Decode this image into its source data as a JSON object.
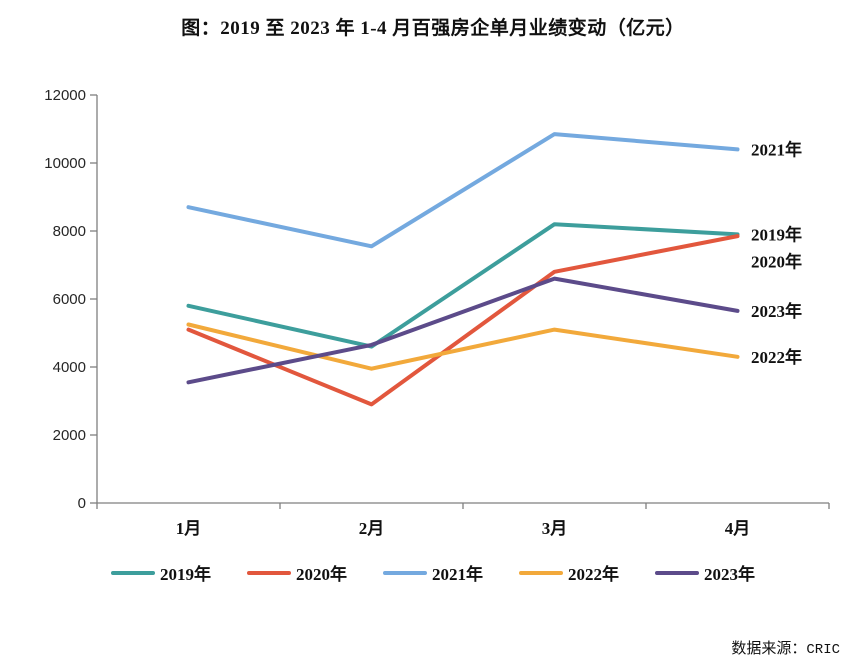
{
  "chart_data": {
    "type": "line",
    "title": "图：2019 至 2023 年 1-4 月百强房企单月业绩变动（亿元）",
    "categories": [
      "1月",
      "2月",
      "3月",
      "4月"
    ],
    "series": [
      {
        "name": "2019年",
        "color": "#3D9E9C",
        "values": [
          5800,
          4600,
          8200,
          7900
        ]
      },
      {
        "name": "2020年",
        "color": "#E2573D",
        "values": [
          5100,
          2900,
          6800,
          7850
        ]
      },
      {
        "name": "2021年",
        "color": "#74A9DF",
        "values": [
          8700,
          7550,
          10850,
          10400
        ]
      },
      {
        "name": "2022年",
        "color": "#F2A93B",
        "values": [
          5250,
          3950,
          5100,
          4300
        ]
      },
      {
        "name": "2023年",
        "color": "#5C4B8A",
        "values": [
          3550,
          4650,
          6600,
          5650
        ]
      }
    ],
    "ylim": [
      0,
      12000
    ],
    "ytick_step": 2000,
    "grid": false,
    "legend_position": "bottom",
    "end_labels": true,
    "axis_color": "#7F7F7F"
  },
  "source": {
    "prefix": "数据来源：",
    "name": "CRIC"
  }
}
